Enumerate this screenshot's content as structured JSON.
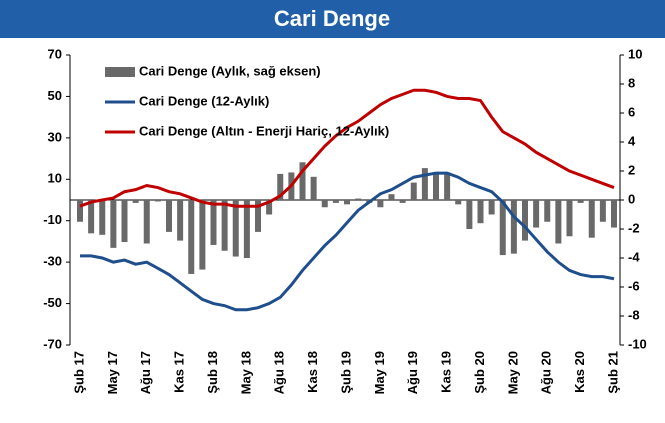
{
  "chart_data": {
    "type": "bar_line",
    "title": "Cari Denge",
    "categories": [
      "Şub 17",
      null,
      null,
      "May 17",
      null,
      null,
      "Ağu 17",
      null,
      null,
      "Kas 17",
      null,
      null,
      "Şub 18",
      null,
      null,
      "May 18",
      null,
      null,
      "Ağu 18",
      null,
      null,
      "Kas 18",
      null,
      null,
      "Şub 19",
      null,
      null,
      "May 19",
      null,
      null,
      "Ağu 19",
      null,
      null,
      "Kas 19",
      null,
      null,
      "Şub 20",
      null,
      null,
      "May 20",
      null,
      null,
      "Ağu 20",
      null,
      null,
      "Kas 20",
      null,
      null,
      "Şub 21"
    ],
    "series": [
      {
        "name": "Cari Denge (Aylık, sağ eksen)",
        "kind": "bar",
        "axis": "y2",
        "color": "#696969",
        "values": [
          -1.5,
          -2.3,
          -2.4,
          -3.3,
          -2.9,
          -0.2,
          -3.0,
          -0.1,
          -2.2,
          -2.8,
          -5.1,
          -4.8,
          -3.1,
          -3.5,
          -3.9,
          -4.0,
          -2.2,
          -1.0,
          1.8,
          1.9,
          2.6,
          1.6,
          -0.5,
          -0.2,
          -0.3,
          0.1,
          -0.2,
          -0.5,
          0.4,
          -0.2,
          1.2,
          2.2,
          1.8,
          1.9,
          -0.3,
          -2.0,
          -1.6,
          -1.0,
          -3.8,
          -3.7,
          -2.8,
          -1.9,
          -1.5,
          -3.0,
          -2.5,
          -0.2,
          -2.6,
          -1.5,
          -1.9
        ]
      },
      {
        "name": "Cari Denge (12-Aylık)",
        "kind": "line",
        "color": "#1f4e8c",
        "values": [
          -27,
          -27,
          -28,
          -30,
          -29,
          -31,
          -30,
          -33,
          -36,
          -40,
          -44,
          -48,
          -50,
          -51,
          -53,
          -53,
          -52,
          -50,
          -47,
          -41,
          -34,
          -28,
          -22,
          -17,
          -11,
          -5,
          -1,
          3,
          5,
          8,
          11,
          12,
          13,
          13,
          11,
          8,
          6,
          4,
          -1,
          -8,
          -13,
          -19,
          -25,
          -30,
          -34,
          -36,
          -37,
          -37,
          -38
        ]
      },
      {
        "name": "Cari Denge (Altın - Enerji Hariç, 12-Aylık)",
        "kind": "line",
        "color": "#c00000",
        "values": [
          -3,
          -1,
          0,
          1,
          4,
          5,
          7,
          6,
          4,
          3,
          1,
          -1,
          -2,
          -2,
          -3,
          -3,
          -3,
          -1,
          2,
          7,
          14,
          20,
          26,
          31,
          35,
          38,
          42,
          46,
          49,
          51,
          53,
          53,
          52,
          50,
          49,
          49,
          48,
          40,
          33,
          30,
          27,
          23,
          20,
          17,
          14,
          12,
          10,
          8,
          6
        ]
      }
    ],
    "ylim": [
      -70,
      70
    ],
    "yticks": [
      -70,
      -50,
      -30,
      -10,
      10,
      30,
      50,
      70
    ],
    "y2lim": [
      -10,
      10
    ],
    "y2ticks": [
      -10,
      -8,
      -6,
      -4,
      -2,
      0,
      2,
      4,
      6,
      8,
      10
    ],
    "grid": false,
    "legend": "top-left"
  }
}
